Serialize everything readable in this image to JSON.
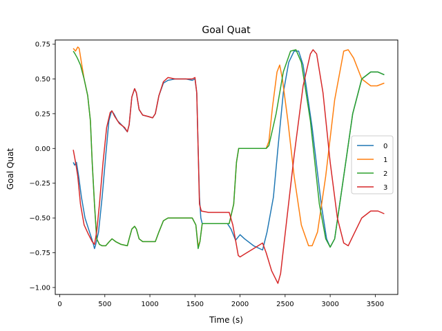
{
  "chart_data": {
    "type": "line",
    "title": "Goal Quat",
    "xlabel": "Time (s)",
    "ylabel": "Goal Quat",
    "xlim": [
      -50,
      3750
    ],
    "ylim": [
      -1.05,
      0.78
    ],
    "xticks": [
      0,
      500,
      1000,
      1500,
      2000,
      2500,
      3000,
      3500
    ],
    "yticks": [
      -1.0,
      -0.75,
      -0.5,
      -0.25,
      0.0,
      0.25,
      0.5,
      0.75
    ],
    "ytick_labels": [
      "−1.00",
      "−0.75",
      "−0.50",
      "−0.25",
      "0.00",
      "0.25",
      "0.50",
      "0.75"
    ],
    "grid": false,
    "legend": "center-right",
    "series": [
      {
        "name": "0",
        "color": "#1f77b4",
        "points": [
          [
            150,
            -0.1
          ],
          [
            165,
            -0.12
          ],
          [
            185,
            -0.1
          ],
          [
            210,
            -0.2
          ],
          [
            240,
            -0.35
          ],
          [
            280,
            -0.5
          ],
          [
            330,
            -0.6
          ],
          [
            370,
            -0.68
          ],
          [
            385,
            -0.72
          ],
          [
            395,
            -0.7
          ],
          [
            430,
            -0.6
          ],
          [
            470,
            -0.35
          ],
          [
            510,
            -0.05
          ],
          [
            545,
            0.2
          ],
          [
            575,
            0.27
          ],
          [
            600,
            0.25
          ],
          [
            640,
            0.2
          ],
          [
            700,
            0.16
          ],
          [
            750,
            0.12
          ],
          [
            770,
            0.17
          ],
          [
            800,
            0.37
          ],
          [
            830,
            0.43
          ],
          [
            850,
            0.4
          ],
          [
            880,
            0.28
          ],
          [
            920,
            0.24
          ],
          [
            980,
            0.23
          ],
          [
            1030,
            0.22
          ],
          [
            1060,
            0.25
          ],
          [
            1100,
            0.38
          ],
          [
            1150,
            0.47
          ],
          [
            1200,
            0.49
          ],
          [
            1280,
            0.5
          ],
          [
            1400,
            0.5
          ],
          [
            1470,
            0.49
          ],
          [
            1500,
            0.5
          ],
          [
            1520,
            0.4
          ],
          [
            1535,
            0.0
          ],
          [
            1550,
            -0.35
          ],
          [
            1565,
            -0.5
          ],
          [
            1580,
            -0.54
          ],
          [
            1650,
            -0.54
          ],
          [
            1760,
            -0.54
          ],
          [
            1860,
            -0.54
          ],
          [
            1900,
            -0.58
          ],
          [
            1950,
            -0.66
          ],
          [
            2000,
            -0.62
          ],
          [
            2050,
            -0.65
          ],
          [
            2150,
            -0.7
          ],
          [
            2250,
            -0.73
          ],
          [
            2300,
            -0.6
          ],
          [
            2370,
            -0.35
          ],
          [
            2420,
            0.0
          ],
          [
            2480,
            0.4
          ],
          [
            2540,
            0.62
          ],
          [
            2600,
            0.7
          ],
          [
            2650,
            0.7
          ],
          [
            2700,
            0.6
          ],
          [
            2800,
            0.15
          ],
          [
            2900,
            -0.4
          ],
          [
            2960,
            -0.65
          ],
          [
            3000,
            -0.71
          ],
          [
            3050,
            -0.65
          ],
          [
            3150,
            -0.2
          ],
          [
            3250,
            0.25
          ],
          [
            3350,
            0.5
          ],
          [
            3450,
            0.55
          ],
          [
            3530,
            0.55
          ],
          [
            3600,
            0.53
          ]
        ]
      },
      {
        "name": "1",
        "color": "#ff7f0e",
        "points": [
          [
            150,
            0.72
          ],
          [
            175,
            0.7
          ],
          [
            200,
            0.73
          ],
          [
            215,
            0.72
          ],
          [
            235,
            0.64
          ],
          [
            270,
            0.5
          ],
          [
            310,
            0.38
          ],
          [
            340,
            0.2
          ],
          [
            360,
            -0.1
          ],
          [
            385,
            -0.4
          ],
          [
            410,
            -0.65
          ],
          [
            440,
            -0.69
          ],
          [
            470,
            -0.7
          ],
          [
            510,
            -0.7
          ],
          [
            550,
            -0.67
          ],
          [
            580,
            -0.65
          ],
          [
            620,
            -0.67
          ],
          [
            680,
            -0.69
          ],
          [
            750,
            -0.7
          ],
          [
            770,
            -0.65
          ],
          [
            800,
            -0.58
          ],
          [
            830,
            -0.56
          ],
          [
            850,
            -0.58
          ],
          [
            880,
            -0.65
          ],
          [
            920,
            -0.67
          ],
          [
            1000,
            -0.67
          ],
          [
            1060,
            -0.67
          ],
          [
            1100,
            -0.6
          ],
          [
            1150,
            -0.52
          ],
          [
            1200,
            -0.5
          ],
          [
            1300,
            -0.5
          ],
          [
            1400,
            -0.5
          ],
          [
            1470,
            -0.5
          ],
          [
            1510,
            -0.55
          ],
          [
            1535,
            -0.7
          ],
          [
            1555,
            -0.67
          ],
          [
            1580,
            -0.54
          ],
          [
            1650,
            -0.54
          ],
          [
            1760,
            -0.54
          ],
          [
            1880,
            -0.54
          ],
          [
            1930,
            -0.4
          ],
          [
            1960,
            -0.1
          ],
          [
            1985,
            0.0
          ],
          [
            2050,
            0.0
          ],
          [
            2150,
            0.0
          ],
          [
            2270,
            0.0
          ],
          [
            2290,
            0.0
          ],
          [
            2320,
            0.05
          ],
          [
            2360,
            0.3
          ],
          [
            2410,
            0.55
          ],
          [
            2440,
            0.6
          ],
          [
            2470,
            0.5
          ],
          [
            2530,
            0.2
          ],
          [
            2600,
            -0.2
          ],
          [
            2680,
            -0.55
          ],
          [
            2760,
            -0.7
          ],
          [
            2800,
            -0.7
          ],
          [
            2860,
            -0.6
          ],
          [
            2950,
            -0.2
          ],
          [
            3050,
            0.35
          ],
          [
            3150,
            0.7
          ],
          [
            3200,
            0.71
          ],
          [
            3260,
            0.65
          ],
          [
            3350,
            0.5
          ],
          [
            3450,
            0.45
          ],
          [
            3520,
            0.45
          ],
          [
            3600,
            0.47
          ]
        ]
      },
      {
        "name": "2",
        "color": "#2ca02c",
        "points": [
          [
            150,
            0.7
          ],
          [
            170,
            0.68
          ],
          [
            195,
            0.65
          ],
          [
            230,
            0.6
          ],
          [
            270,
            0.5
          ],
          [
            310,
            0.38
          ],
          [
            340,
            0.2
          ],
          [
            360,
            -0.1
          ],
          [
            385,
            -0.4
          ],
          [
            410,
            -0.65
          ],
          [
            440,
            -0.69
          ],
          [
            470,
            -0.7
          ],
          [
            510,
            -0.7
          ],
          [
            550,
            -0.67
          ],
          [
            580,
            -0.65
          ],
          [
            620,
            -0.67
          ],
          [
            680,
            -0.69
          ],
          [
            750,
            -0.7
          ],
          [
            770,
            -0.65
          ],
          [
            800,
            -0.58
          ],
          [
            830,
            -0.56
          ],
          [
            850,
            -0.58
          ],
          [
            880,
            -0.65
          ],
          [
            920,
            -0.67
          ],
          [
            1000,
            -0.67
          ],
          [
            1060,
            -0.67
          ],
          [
            1100,
            -0.6
          ],
          [
            1150,
            -0.52
          ],
          [
            1200,
            -0.5
          ],
          [
            1300,
            -0.5
          ],
          [
            1400,
            -0.5
          ],
          [
            1470,
            -0.5
          ],
          [
            1510,
            -0.55
          ],
          [
            1535,
            -0.72
          ],
          [
            1555,
            -0.67
          ],
          [
            1580,
            -0.54
          ],
          [
            1650,
            -0.54
          ],
          [
            1760,
            -0.54
          ],
          [
            1880,
            -0.54
          ],
          [
            1930,
            -0.4
          ],
          [
            1960,
            -0.1
          ],
          [
            1985,
            0.0
          ],
          [
            2050,
            0.0
          ],
          [
            2150,
            0.0
          ],
          [
            2290,
            0.0
          ],
          [
            2320,
            0.02
          ],
          [
            2400,
            0.25
          ],
          [
            2480,
            0.55
          ],
          [
            2560,
            0.7
          ],
          [
            2620,
            0.71
          ],
          [
            2680,
            0.62
          ],
          [
            2780,
            0.2
          ],
          [
            2880,
            -0.4
          ],
          [
            2950,
            -0.65
          ],
          [
            3000,
            -0.71
          ],
          [
            3050,
            -0.65
          ],
          [
            3150,
            -0.2
          ],
          [
            3250,
            0.25
          ],
          [
            3350,
            0.5
          ],
          [
            3450,
            0.55
          ],
          [
            3530,
            0.55
          ],
          [
            3600,
            0.53
          ]
        ]
      },
      {
        "name": "3",
        "color": "#d62728",
        "points": [
          [
            150,
            -0.01
          ],
          [
            175,
            -0.1
          ],
          [
            200,
            -0.2
          ],
          [
            230,
            -0.4
          ],
          [
            270,
            -0.55
          ],
          [
            320,
            -0.62
          ],
          [
            360,
            -0.67
          ],
          [
            385,
            -0.69
          ],
          [
            410,
            -0.6
          ],
          [
            440,
            -0.4
          ],
          [
            480,
            -0.1
          ],
          [
            520,
            0.15
          ],
          [
            560,
            0.26
          ],
          [
            580,
            0.27
          ],
          [
            610,
            0.23
          ],
          [
            660,
            0.18
          ],
          [
            720,
            0.15
          ],
          [
            750,
            0.12
          ],
          [
            770,
            0.17
          ],
          [
            800,
            0.37
          ],
          [
            830,
            0.43
          ],
          [
            850,
            0.4
          ],
          [
            880,
            0.28
          ],
          [
            920,
            0.24
          ],
          [
            980,
            0.23
          ],
          [
            1030,
            0.22
          ],
          [
            1060,
            0.25
          ],
          [
            1100,
            0.38
          ],
          [
            1150,
            0.48
          ],
          [
            1200,
            0.51
          ],
          [
            1280,
            0.5
          ],
          [
            1400,
            0.5
          ],
          [
            1470,
            0.5
          ],
          [
            1500,
            0.51
          ],
          [
            1520,
            0.4
          ],
          [
            1535,
            0.0
          ],
          [
            1550,
            -0.4
          ],
          [
            1570,
            -0.45
          ],
          [
            1650,
            -0.46
          ],
          [
            1760,
            -0.46
          ],
          [
            1880,
            -0.46
          ],
          [
            1920,
            -0.55
          ],
          [
            1950,
            -0.66
          ],
          [
            1980,
            -0.77
          ],
          [
            2000,
            -0.78
          ],
          [
            2050,
            -0.76
          ],
          [
            2150,
            -0.72
          ],
          [
            2250,
            -0.68
          ],
          [
            2290,
            -0.75
          ],
          [
            2350,
            -0.88
          ],
          [
            2420,
            -0.97
          ],
          [
            2450,
            -0.9
          ],
          [
            2520,
            -0.5
          ],
          [
            2600,
            -0.05
          ],
          [
            2700,
            0.45
          ],
          [
            2780,
            0.68
          ],
          [
            2810,
            0.71
          ],
          [
            2850,
            0.68
          ],
          [
            2920,
            0.4
          ],
          [
            3000,
            -0.1
          ],
          [
            3080,
            -0.5
          ],
          [
            3150,
            -0.68
          ],
          [
            3200,
            -0.7
          ],
          [
            3260,
            -0.62
          ],
          [
            3350,
            -0.5
          ],
          [
            3450,
            -0.45
          ],
          [
            3530,
            -0.45
          ],
          [
            3600,
            -0.47
          ]
        ]
      }
    ]
  }
}
